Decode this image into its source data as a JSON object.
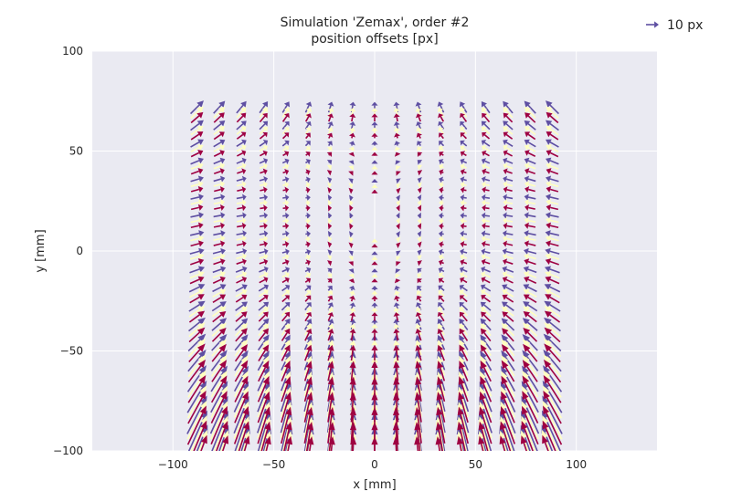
{
  "chart_data": {
    "type": "quiver",
    "title_line1": "Simulation 'Zemax', order #2",
    "title_line2": "position offsets [px]",
    "xlabel": "x [mm]",
    "ylabel": "y [mm]",
    "xlim": [
      -140,
      140
    ],
    "ylim": [
      -100,
      100
    ],
    "xticks": [
      -100,
      -50,
      0,
      50,
      100
    ],
    "yticks": [
      -100,
      -50,
      0,
      50,
      100
    ],
    "xtick_labels": [
      "−100",
      "−50",
      "0",
      "50",
      "100"
    ],
    "ytick_labels": [
      "−100",
      "−50",
      "0",
      "50",
      "100"
    ],
    "grid": true,
    "background": "#EAEAF2",
    "grid_color": "#ffffff",
    "key": {
      "label": "10 px",
      "color": "#5E4FA2",
      "placement": "top-right",
      "length_px": 10
    },
    "series": [
      {
        "color": "#5E4FA2"
      },
      {
        "color": "#FFFFBF"
      },
      {
        "color": "#9E0142"
      }
    ],
    "field": {
      "x_range": [
        -88,
        88
      ],
      "nx": 17,
      "y_range": [
        -100,
        72
      ],
      "ny": 20
    }
  }
}
